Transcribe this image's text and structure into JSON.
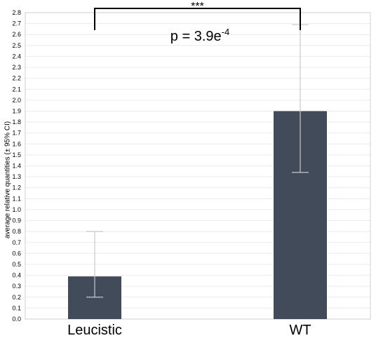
{
  "chart_data": {
    "type": "bar",
    "categories": [
      "Leucistic",
      "WT"
    ],
    "values": [
      0.39,
      1.9
    ],
    "error_low": [
      0.2,
      1.34
    ],
    "error_high": [
      0.8,
      2.69
    ],
    "ylabel": "average relative quantities (± 95% CI)",
    "xlabel": "",
    "ylim": [
      0,
      2.8
    ],
    "ytick_step": 0.1,
    "grid": true,
    "bar_color": "#424b5a",
    "errorbar_color": "#c8c8c8",
    "annotation": {
      "significance": "***",
      "pvalue_base": "p = 3.9e",
      "pvalue_exp": "-4"
    }
  }
}
